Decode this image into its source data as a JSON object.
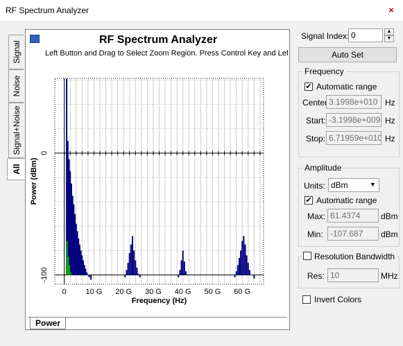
{
  "window": {
    "title": "RF Spectrum Analyzer",
    "close": "×"
  },
  "side_tabs": [
    {
      "label": "Signal"
    },
    {
      "label": "Noise"
    },
    {
      "label": "Signal+Noise"
    },
    {
      "label": "All"
    }
  ],
  "plot": {
    "title": "RF Spectrum Analyzer",
    "subtitle": "Left Button and Drag to Select Zoom Region. Press Control Key and Left",
    "bottom_tab": "Power"
  },
  "chart_data": {
    "type": "bar",
    "title": "RF Spectrum Analyzer",
    "xlabel": "Frequency (Hz)",
    "ylabel": "Power (dBm)",
    "xlim": [
      -3.2,
      67.2
    ],
    "ylim": [
      -107.7,
      61.4
    ],
    "x_ticks": [
      0,
      10,
      20,
      30,
      40,
      50,
      60
    ],
    "x_tick_labels": [
      "0",
      "10 G",
      "20 G",
      "30 G",
      "40 G",
      "50 G",
      "60 G"
    ],
    "y_ticks": [
      0,
      -100
    ],
    "y_tick_labels": [
      "0",
      "-100"
    ],
    "grid": true,
    "series": [
      {
        "name": "Signal",
        "color": "#000080",
        "points": [
          [
            0.8,
            61
          ],
          [
            1.2,
            10
          ],
          [
            1.6,
            -5
          ],
          [
            2.0,
            -15
          ],
          [
            2.4,
            -25
          ],
          [
            2.8,
            -35
          ],
          [
            3.2,
            -42
          ],
          [
            3.6,
            -50
          ],
          [
            4.0,
            -58
          ],
          [
            4.4,
            -64
          ],
          [
            4.8,
            -70
          ],
          [
            5.2,
            -75
          ],
          [
            5.6,
            -80
          ],
          [
            6.0,
            -84
          ],
          [
            6.4,
            -88
          ],
          [
            6.8,
            -92
          ],
          [
            7.2,
            -95
          ],
          [
            7.6,
            -98
          ],
          [
            8.0,
            -100
          ],
          [
            8.4,
            -102
          ],
          [
            9.0,
            -104
          ],
          [
            20.5,
            -102
          ],
          [
            21.0,
            -96
          ],
          [
            21.5,
            -90
          ],
          [
            22.0,
            -82
          ],
          [
            22.5,
            -75
          ],
          [
            23.0,
            -68
          ],
          [
            23.5,
            -80
          ],
          [
            24.0,
            -88
          ],
          [
            24.5,
            -94
          ],
          [
            25.0,
            -99
          ],
          [
            25.5,
            -102
          ],
          [
            38.5,
            -102
          ],
          [
            39.0,
            -96
          ],
          [
            39.5,
            -88
          ],
          [
            40.0,
            -80
          ],
          [
            40.5,
            -89
          ],
          [
            41.0,
            -97
          ],
          [
            57.5,
            -102
          ],
          [
            58.0,
            -97
          ],
          [
            58.5,
            -92
          ],
          [
            59.0,
            -86
          ],
          [
            59.5,
            -80
          ],
          [
            60.0,
            -72
          ],
          [
            60.5,
            -68
          ],
          [
            61.0,
            -75
          ],
          [
            61.5,
            -84
          ],
          [
            62.0,
            -90
          ],
          [
            62.5,
            -96
          ],
          [
            63.0,
            -100
          ],
          [
            64.0,
            -103
          ]
        ]
      },
      {
        "name": "Noise",
        "color": "#00b000",
        "points": [
          [
            0.9,
            -72
          ],
          [
            1.3,
            -85
          ],
          [
            1.7,
            -92
          ],
          [
            2.1,
            -98
          ]
        ]
      }
    ]
  },
  "controls": {
    "signal_index_label": "Signal Index:",
    "signal_index_value": "0",
    "auto_set": "Auto Set",
    "frequency": {
      "legend": "Frequency",
      "auto_label": "Automatic range",
      "auto_checked": "✔",
      "center_label": "Center:",
      "center": "3.1998e+010",
      "center_unit": "Hz",
      "start_label": "Start:",
      "start": "-3.1998e+009",
      "start_unit": "Hz",
      "stop_label": "Stop:",
      "stop": "6.71959e+010",
      "stop_unit": "Hz"
    },
    "amplitude": {
      "legend": "Amplitude",
      "units_label": "Units:",
      "units": "dBm",
      "auto_label": "Automatic range",
      "auto_checked": "✔",
      "max_label": "Max:",
      "max": "61.4374",
      "max_unit": "dBm",
      "min_label": "Min:",
      "min": "-107.687",
      "min_unit": "dBm"
    },
    "resolution": {
      "legend": "Resolution Bandwidth",
      "res_label": "Res:",
      "res": "10",
      "res_unit": "MHz"
    },
    "invert_colors": "Invert Colors"
  }
}
